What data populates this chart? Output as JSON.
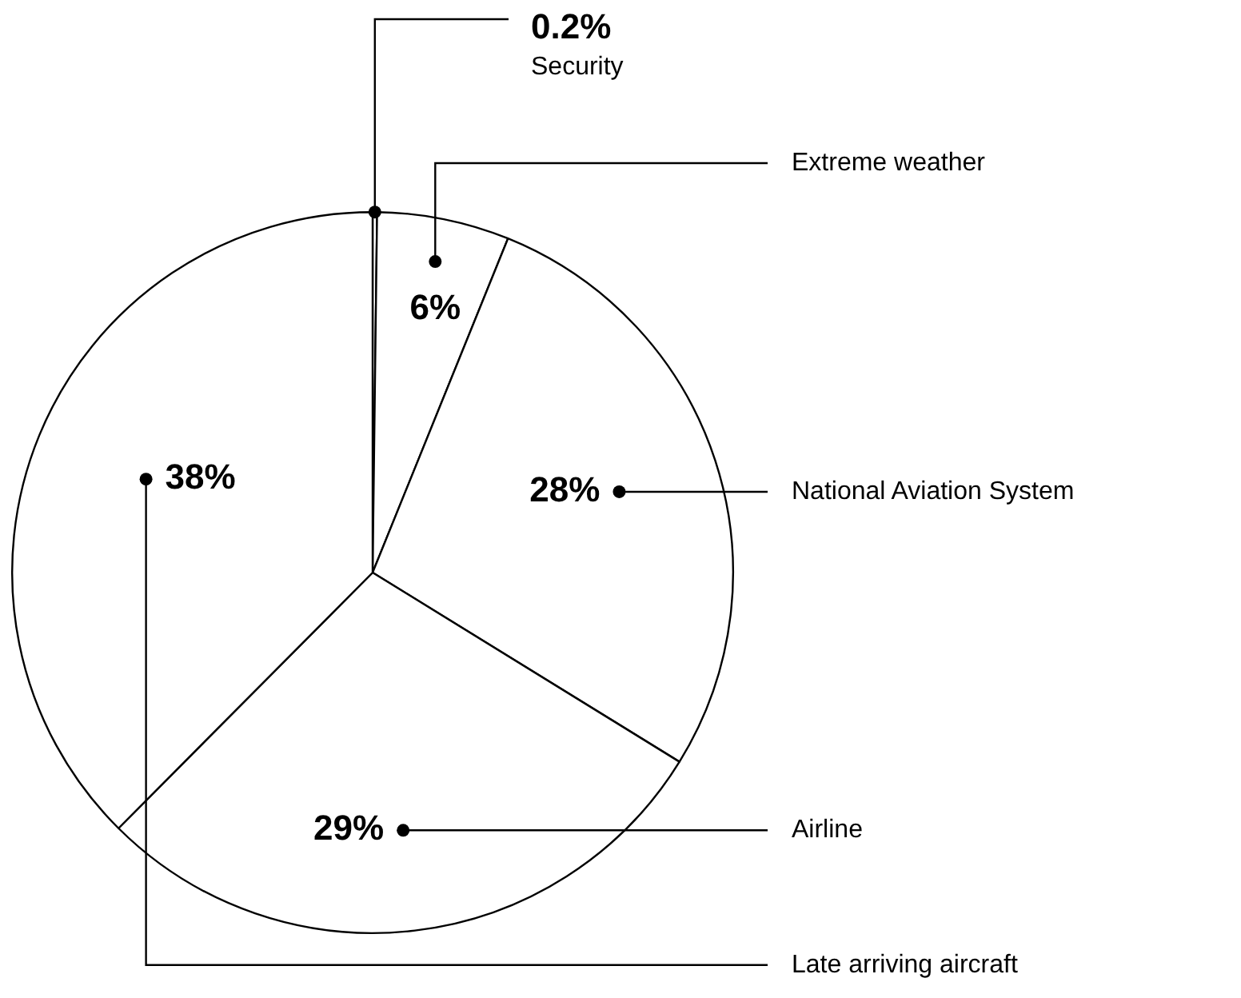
{
  "chart_data": {
    "type": "pie",
    "categories": [
      "Security",
      "Extreme weather",
      "National Aviation System",
      "Airline",
      "Late arriving aircraft"
    ],
    "values": [
      0.2,
      6,
      28,
      29,
      38
    ],
    "colors": [
      "#ffffff",
      "#ffffff",
      "#ffffff",
      "#ffffff",
      "#ffffff"
    ],
    "value_labels": [
      "0.2%",
      "6%",
      "28%",
      "29%",
      "38%"
    ]
  }
}
